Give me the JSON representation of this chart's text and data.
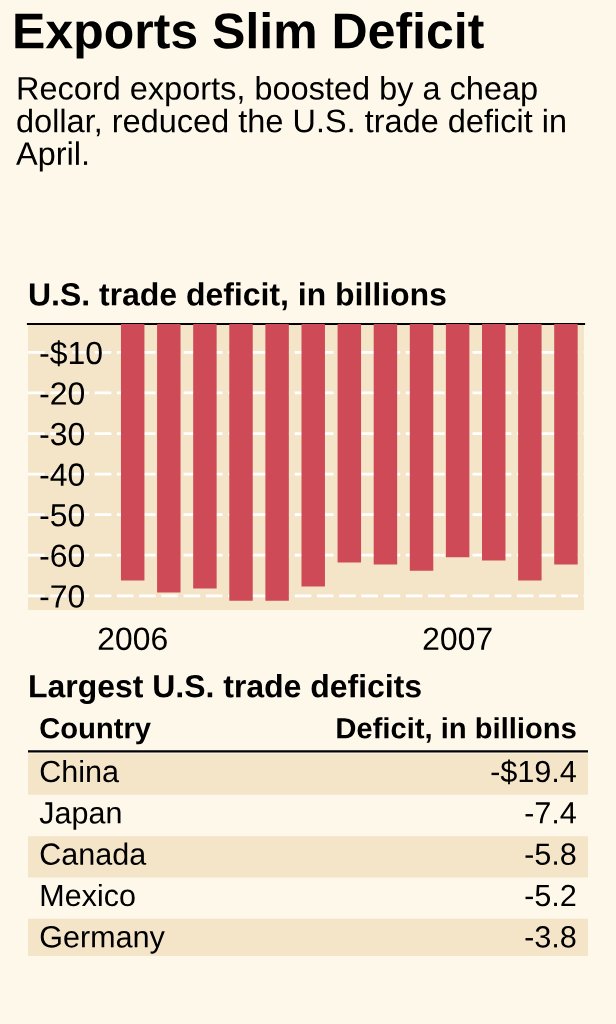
{
  "chart_data": [
    {
      "type": "bar",
      "title": "Exports Slim Deficit",
      "subtitle": "Record exports, boosted by a cheap dollar, reduced the U.S. trade deficit in April.",
      "ylabel": "U.S. trade deficit, in billions",
      "categories": [
        "2006",
        null,
        null,
        null,
        null,
        null,
        null,
        null,
        null,
        "2007",
        null,
        null,
        null
      ],
      "values": [
        -66.2,
        -69.2,
        -68.2,
        -71.2,
        -71.2,
        -67.7,
        -61.8,
        -62.3,
        -63.8,
        -60.5,
        -61.3,
        -66.2,
        -62.3
      ],
      "color": "#cf4a57",
      "ylim": [
        -73.5,
        -3
      ],
      "yticks": [
        {
          "value": -10,
          "label": "-$10"
        },
        -20,
        -30,
        -40,
        -50,
        -60,
        -70
      ],
      "grid": "y"
    },
    {
      "type": "other",
      "title": "Largest U.S. trade deficits",
      "annotations": [
        "Country",
        "Deficit, in billions"
      ],
      "categories": [
        "China",
        "Japan",
        "Canada",
        "Mexico",
        "Germany"
      ],
      "values": [
        -19.4,
        -7.4,
        -5.8,
        -5.2,
        -3.8
      ],
      "value_labels": [
        "-$19.4",
        "-7.4",
        "-5.8",
        "-5.2",
        "-3.8"
      ]
    }
  ]
}
